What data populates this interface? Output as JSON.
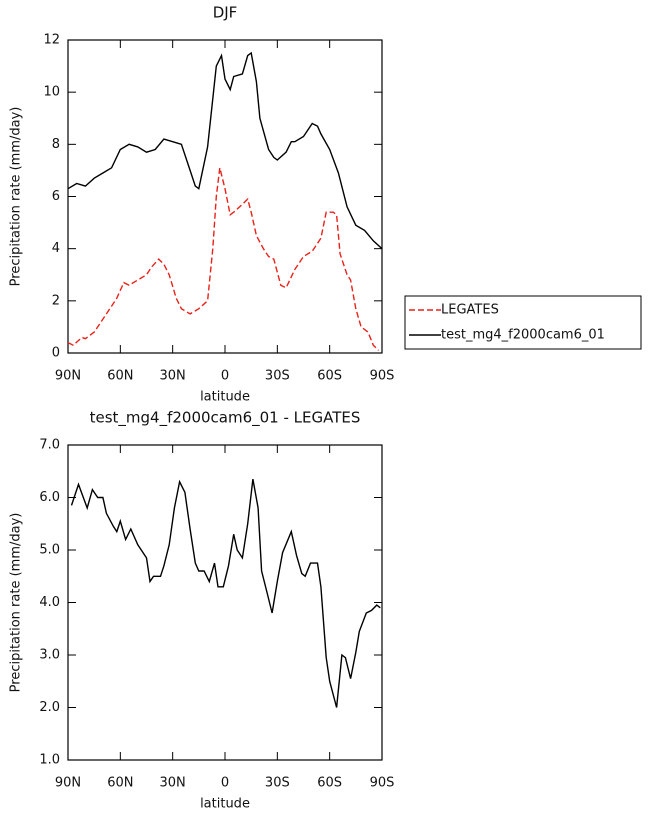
{
  "chart_data": [
    {
      "type": "line",
      "title": "DJF",
      "x_label": "latitude",
      "y_label": "Precipitation rate (mm/day)",
      "xlim": [
        90,
        -90
      ],
      "xticks": [
        {
          "value": 90,
          "label": "90N"
        },
        {
          "value": 60,
          "label": "60N"
        },
        {
          "value": 30,
          "label": "30N"
        },
        0,
        {
          "value": -30,
          "label": "30S"
        },
        {
          "value": -60,
          "label": "60S"
        },
        {
          "value": -90,
          "label": "90S"
        }
      ],
      "ylim": [
        0,
        12
      ],
      "yticks": [
        0,
        2,
        4,
        6,
        8,
        10,
        12
      ],
      "legend": "right",
      "series": [
        {
          "name": "LEGATES",
          "color": "#e8221a",
          "style": "dashed",
          "x": [
            90,
            87,
            82,
            80,
            75,
            70,
            65,
            62,
            58,
            55,
            50,
            45,
            42,
            38,
            35,
            32,
            28,
            25,
            20,
            15,
            10,
            7,
            5,
            3,
            0,
            -3,
            -5,
            -10,
            -13,
            -15,
            -18,
            -22,
            -25,
            -28,
            -32,
            -35,
            -40,
            -45,
            -50,
            -55,
            -58,
            -62,
            -64,
            -66,
            -70,
            -72,
            -75,
            -78,
            -82,
            -85,
            -88
          ],
          "values": [
            0.4,
            0.3,
            0.6,
            0.55,
            0.8,
            1.3,
            1.8,
            2.1,
            2.7,
            2.6,
            2.8,
            3.0,
            3.3,
            3.6,
            3.4,
            3.0,
            2.1,
            1.7,
            1.5,
            1.7,
            2.0,
            4.0,
            6.0,
            7.1,
            6.3,
            5.3,
            5.4,
            5.7,
            5.9,
            5.4,
            4.5,
            4.0,
            3.7,
            3.6,
            2.6,
            2.5,
            3.2,
            3.7,
            3.9,
            4.4,
            5.4,
            5.4,
            5.3,
            3.8,
            3.0,
            2.8,
            1.7,
            1.0,
            0.8,
            0.3,
            0.1
          ]
        },
        {
          "name": "test_mg4_f2000cam6_01",
          "color": "#000000",
          "style": "solid",
          "x": [
            90,
            85,
            80,
            75,
            70,
            65,
            60,
            55,
            50,
            45,
            40,
            35,
            30,
            25,
            20,
            17,
            15,
            10,
            5,
            2,
            0,
            -3,
            -5,
            -10,
            -13,
            -15,
            -18,
            -20,
            -25,
            -28,
            -30,
            -35,
            -38,
            -40,
            -45,
            -50,
            -53,
            -55,
            -60,
            -65,
            -70,
            -75,
            -80,
            -85,
            -90
          ],
          "values": [
            6.3,
            6.5,
            6.4,
            6.7,
            6.9,
            7.1,
            7.8,
            8.0,
            7.9,
            7.7,
            7.8,
            8.2,
            8.1,
            8.0,
            7.0,
            6.4,
            6.3,
            7.9,
            11.0,
            11.4,
            10.5,
            10.1,
            10.6,
            10.7,
            11.4,
            11.5,
            10.4,
            9.0,
            7.8,
            7.5,
            7.4,
            7.7,
            8.1,
            8.1,
            8.3,
            8.8,
            8.7,
            8.4,
            7.8,
            6.9,
            5.6,
            4.9,
            4.7,
            4.3,
            4.0
          ]
        }
      ]
    },
    {
      "type": "line",
      "title": "test_mg4_f2000cam6_01 - LEGATES",
      "x_label": "latitude",
      "y_label": "Precipitation rate (mm/day)",
      "xlim": [
        90,
        -90
      ],
      "xticks": [
        {
          "value": 90,
          "label": "90N"
        },
        {
          "value": 60,
          "label": "60N"
        },
        {
          "value": 30,
          "label": "30N"
        },
        0,
        {
          "value": -30,
          "label": "30S"
        },
        {
          "value": -60,
          "label": "60S"
        },
        {
          "value": -90,
          "label": "90S"
        }
      ],
      "ylim": [
        1,
        7
      ],
      "yticks": [
        {
          "value": 1,
          "label": "1.0"
        },
        {
          "value": 2,
          "label": "2.0"
        },
        {
          "value": 3,
          "label": "3.0"
        },
        {
          "value": 4,
          "label": "4.0"
        },
        {
          "value": 5,
          "label": "5.0"
        },
        {
          "value": 6,
          "label": "6.0"
        },
        {
          "value": 7,
          "label": "7.0"
        }
      ],
      "series": [
        {
          "color": "#000000",
          "style": "solid",
          "x": [
            88,
            84,
            79,
            76,
            73,
            70,
            68,
            64,
            62,
            60,
            57,
            54,
            50,
            45,
            43,
            41,
            37,
            35,
            32,
            29,
            26,
            23,
            20,
            17,
            15,
            12,
            9,
            6,
            4,
            1,
            -2,
            -5,
            -7,
            -10,
            -13,
            -16,
            -19,
            -21,
            -24,
            -27,
            -30,
            -33,
            -38,
            -41,
            -44,
            -46,
            -49,
            -53,
            -55,
            -58,
            -60,
            -64,
            -67,
            -69,
            -72,
            -75,
            -77,
            -81,
            -84,
            -87,
            -89
          ],
          "values": [
            5.85,
            6.25,
            5.8,
            6.15,
            6.0,
            6.0,
            5.7,
            5.45,
            5.35,
            5.55,
            5.2,
            5.4,
            5.1,
            4.85,
            4.4,
            4.5,
            4.5,
            4.7,
            5.1,
            5.8,
            6.3,
            6.1,
            5.4,
            4.75,
            4.6,
            4.6,
            4.4,
            4.75,
            4.3,
            4.3,
            4.7,
            5.3,
            5.0,
            4.85,
            5.5,
            6.35,
            5.8,
            4.6,
            4.2,
            3.8,
            4.4,
            4.95,
            5.35,
            4.9,
            4.55,
            4.5,
            4.75,
            4.75,
            4.3,
            2.95,
            2.5,
            2.0,
            3.0,
            2.95,
            2.55,
            3.05,
            3.45,
            3.8,
            3.85,
            3.95,
            3.9
          ]
        }
      ]
    }
  ]
}
